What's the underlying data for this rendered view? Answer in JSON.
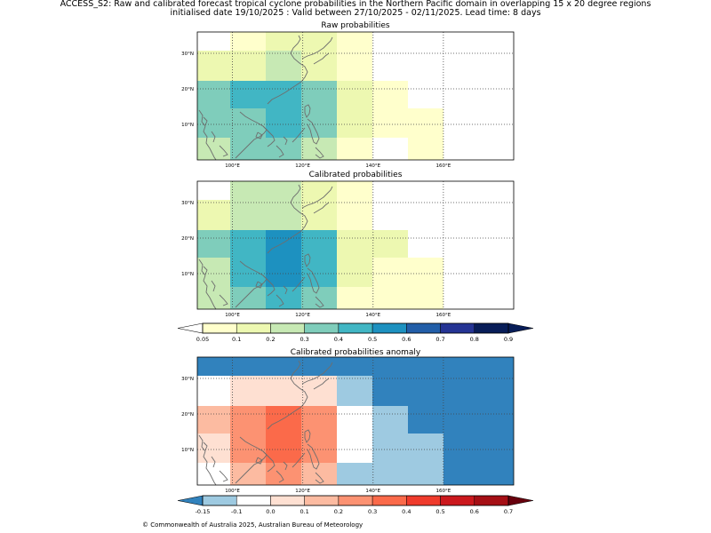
{
  "figure": {
    "title_line1": "ACCESS_S2: Raw and calibrated forecast tropical cyclone probabilities in the Northern Pacific domain in overlapping 15 x 20 degree regions",
    "title_line2": "initialised date 19/10/2025 :  Valid between 27/10/2025 - 02/11/2025. Lead time: 8 days",
    "copyright": "© Commonwealth of Australia 2025, Australian Bureau of Meteorology"
  },
  "axes": {
    "lon_ticks": [
      "100°E",
      "120°E",
      "140°E",
      "160°E"
    ],
    "lat_ticks": [
      "30°N",
      "20°N",
      "10°N"
    ]
  },
  "panels": [
    {
      "title": "Raw probabilities",
      "scale": "prob",
      "colors": [
        [
          "#ffffff",
          "#ffffcc",
          "#edf8b1",
          "#edf8b1",
          "#ffffcc",
          "#ffffff",
          "#ffffff",
          "#ffffff",
          "#ffffff"
        ],
        [
          "#edf8b1",
          "#edf8b1",
          "#c7e9b4",
          "#edf8b1",
          "#ffffcc",
          "#ffffff",
          "#ffffff",
          "#ffffff",
          "#ffffff"
        ],
        [
          "#7fcdbb",
          "#41b6c4",
          "#41b6c4",
          "#7fcdbb",
          "#edf8b1",
          "#ffffcc",
          "#ffffff",
          "#ffffff",
          "#ffffff"
        ],
        [
          "#7fcdbb",
          "#7fcdbb",
          "#41b6c4",
          "#7fcdbb",
          "#edf8b1",
          "#ffffcc",
          "#ffffcc",
          "#ffffff",
          "#ffffff"
        ],
        [
          "#c7e9b4",
          "#7fcdbb",
          "#7fcdbb",
          "#c7e9b4",
          "#ffffcc",
          "#ffffff",
          "#ffffcc",
          "#ffffff",
          "#ffffff"
        ]
      ]
    },
    {
      "title": "Calibrated probabilities",
      "scale": "prob",
      "colors": [
        [
          "#ffffff",
          "#c7e9b4",
          "#c7e9b4",
          "#edf8b1",
          "#ffffcc",
          "#ffffff",
          "#ffffff",
          "#ffffff",
          "#ffffff"
        ],
        [
          "#edf8b1",
          "#c7e9b4",
          "#c7e9b4",
          "#edf8b1",
          "#ffffcc",
          "#ffffff",
          "#ffffff",
          "#ffffff",
          "#ffffff"
        ],
        [
          "#7fcdbb",
          "#41b6c4",
          "#1d91c0",
          "#41b6c4",
          "#edf8b1",
          "#edf8b1",
          "#ffffff",
          "#ffffff",
          "#ffffff"
        ],
        [
          "#c7e9b4",
          "#41b6c4",
          "#1d91c0",
          "#41b6c4",
          "#edf8b1",
          "#ffffcc",
          "#ffffcc",
          "#ffffff",
          "#ffffff"
        ],
        [
          "#c7e9b4",
          "#7fcdbb",
          "#41b6c4",
          "#7fcdbb",
          "#ffffcc",
          "#ffffcc",
          "#ffffcc",
          "#ffffff",
          "#ffffff"
        ]
      ]
    },
    {
      "title": "Calibrated probabilities anomaly",
      "scale": "anomaly",
      "colors": [
        [
          "#3182bd",
          "#3182bd",
          "#3182bd",
          "#3182bd",
          "#3182bd",
          "#3182bd",
          "#3182bd",
          "#3182bd",
          "#3182bd"
        ],
        [
          "#ffffff",
          "#fee0d2",
          "#fee0d2",
          "#fee0d2",
          "#9ecae1",
          "#3182bd",
          "#3182bd",
          "#3182bd",
          "#3182bd"
        ],
        [
          "#fcbba1",
          "#fc9272",
          "#fb6a4a",
          "#fc9272",
          "#ffffff",
          "#9ecae1",
          "#3182bd",
          "#3182bd",
          "#3182bd"
        ],
        [
          "#fee0d2",
          "#fc9272",
          "#fb6a4a",
          "#fc9272",
          "#ffffff",
          "#9ecae1",
          "#9ecae1",
          "#3182bd",
          "#3182bd"
        ],
        [
          "#ffffff",
          "#fcbba1",
          "#fc9272",
          "#fcbba1",
          "#9ecae1",
          "#9ecae1",
          "#9ecae1",
          "#3182bd",
          "#3182bd"
        ]
      ]
    }
  ],
  "colorbars": [
    {
      "name": "prob",
      "labels": [
        "0.05",
        "0.1",
        "0.2",
        "0.3",
        "0.4",
        "0.5",
        "0.6",
        "0.7",
        "0.8",
        "0.9"
      ],
      "colors": [
        "#ffffcc",
        "#edf8b1",
        "#c7e9b4",
        "#7fcdbb",
        "#41b6c4",
        "#1d91c0",
        "#225ea8",
        "#253494",
        "#081d58"
      ],
      "under_color": "#ffffff",
      "over_color": "#081d58"
    },
    {
      "name": "anomaly",
      "labels": [
        "-0.15",
        "-0.1",
        "0.0",
        "0.1",
        "0.2",
        "0.3",
        "0.4",
        "0.5",
        "0.6",
        "0.7"
      ],
      "colors": [
        "#9ecae1",
        "#ffffff",
        "#fee0d2",
        "#fcbba1",
        "#fc9272",
        "#fb6a4a",
        "#ef3b2c",
        "#cb181d",
        "#a50f15"
      ],
      "under_color": "#3182bd",
      "over_color": "#67000d"
    }
  ]
}
